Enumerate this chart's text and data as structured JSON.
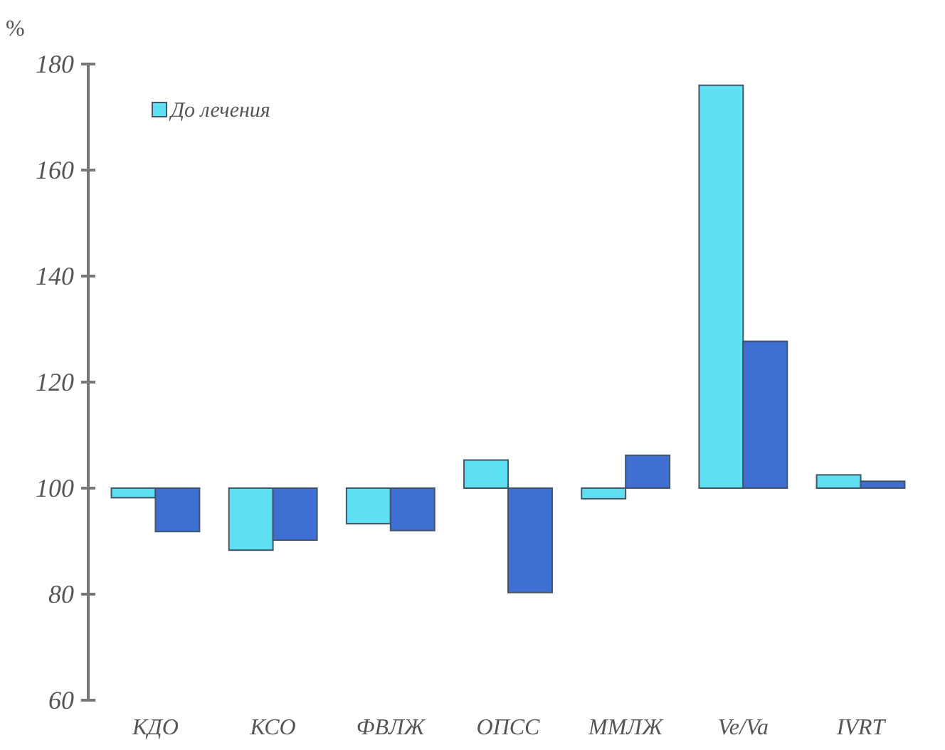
{
  "chart_data": {
    "type": "bar",
    "ylabel": "%",
    "categories": [
      "КДО",
      "КСО",
      "ФВЛЖ",
      "ОПСС",
      "ММЛЖ",
      "Ve/Va",
      "IVRT"
    ],
    "series": [
      {
        "name": "До лечения",
        "color": "#5fe0f2",
        "base": [
          100,
          100,
          100,
          100,
          100,
          100,
          100
        ],
        "values": [
          -1.8,
          -11.7,
          -6.7,
          5.3,
          -2,
          76,
          2.5
        ]
      },
      {
        "color": "#3f6fd2",
        "base": [
          100,
          100,
          100,
          100,
          100,
          100,
          100
        ],
        "values": [
          -8.2,
          -9.8,
          -8,
          -19.7,
          6.2,
          27.7,
          1.3
        ]
      }
    ],
    "ylim": [
      60,
      180
    ],
    "yticks": [
      60,
      80,
      100,
      120,
      140,
      160,
      180
    ],
    "grid": false,
    "legend": "top left"
  }
}
